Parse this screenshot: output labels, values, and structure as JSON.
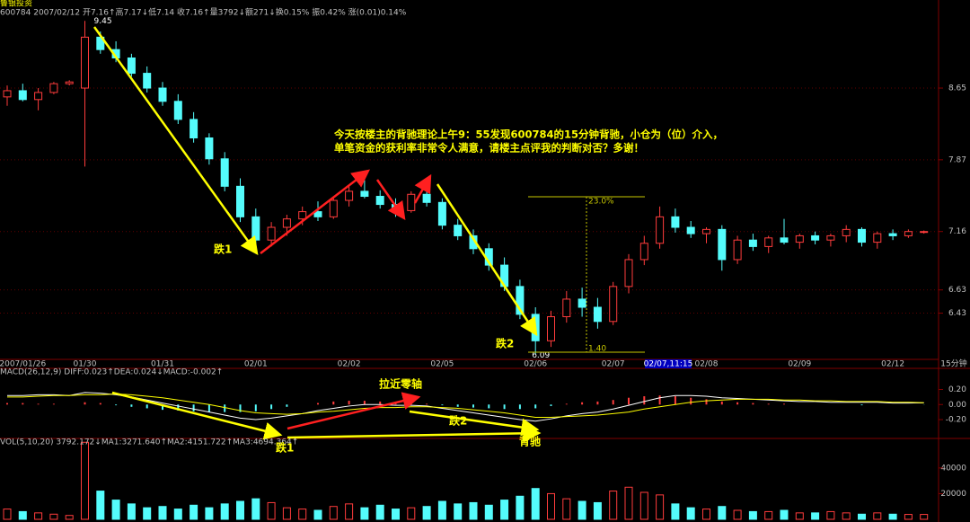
{
  "chart_data": [
    {
      "type": "candlestick",
      "title": "鲁银投资",
      "subtitle": "600784 2007/02/12 开7.16↑高7.17↓低7.14 收7.16↑量3792↓额271↓换0.15% 振0.42% 涨(0.01)0.14%",
      "categories": [
        null,
        "2007/01/26",
        null,
        null,
        null,
        "01/30",
        null,
        null,
        null,
        null,
        "01/31",
        null,
        null,
        null,
        null,
        null,
        "02/01",
        null,
        null,
        null,
        null,
        null,
        "02/02",
        null,
        null,
        null,
        null,
        null,
        "02/05",
        null,
        null,
        null,
        null,
        null,
        "02/06",
        null,
        null,
        null,
        null,
        "02/07",
        null,
        null,
        null,
        null,
        null,
        "02/08",
        null,
        null,
        null,
        null,
        null,
        "02/09",
        null,
        null,
        null,
        null,
        null,
        "02/12",
        null,
        null
      ],
      "cursor_label": "02/07,11:15",
      "period": "15分钟",
      "open": [
        8.55,
        8.62,
        8.52,
        8.6,
        8.7,
        8.65,
        9.25,
        9.1,
        9.0,
        8.82,
        8.65,
        8.5,
        8.3,
        8.1,
        7.88,
        7.6,
        7.3,
        7.08,
        7.2,
        7.28,
        7.35,
        7.3,
        7.46,
        7.55,
        7.5,
        7.42,
        7.36,
        7.52,
        7.44,
        7.22,
        7.12,
        7.0,
        6.85,
        6.66,
        6.42,
        6.2,
        6.4,
        6.55,
        6.48,
        6.36,
        6.66,
        6.9,
        7.05,
        7.3,
        7.2,
        7.14,
        7.18,
        6.9,
        7.08,
        7.02,
        7.1,
        7.06,
        7.12,
        7.08,
        7.12,
        7.18,
        7.06,
        7.14,
        7.12,
        7.16
      ],
      "high": [
        8.68,
        8.7,
        8.65,
        8.72,
        8.74,
        9.45,
        9.32,
        9.2,
        9.05,
        8.9,
        8.72,
        8.58,
        8.38,
        8.15,
        7.95,
        7.68,
        7.38,
        7.25,
        7.32,
        7.4,
        7.45,
        7.5,
        7.6,
        7.66,
        7.56,
        7.48,
        7.55,
        7.64,
        7.48,
        7.28,
        7.18,
        7.05,
        6.92,
        6.72,
        6.48,
        6.45,
        6.62,
        6.65,
        6.56,
        6.7,
        6.95,
        7.12,
        7.4,
        7.38,
        7.26,
        7.2,
        7.22,
        7.12,
        7.14,
        7.12,
        7.28,
        7.14,
        7.16,
        7.14,
        7.22,
        7.2,
        7.16,
        7.18,
        7.18,
        7.17
      ],
      "low": [
        8.45,
        8.5,
        8.4,
        8.58,
        8.68,
        7.8,
        9.05,
        8.95,
        8.78,
        8.6,
        8.45,
        8.25,
        8.05,
        7.82,
        7.55,
        7.25,
        7.0,
        7.02,
        7.12,
        7.22,
        7.26,
        7.28,
        7.4,
        7.48,
        7.38,
        7.3,
        7.34,
        7.4,
        7.18,
        7.08,
        6.95,
        6.8,
        6.62,
        6.38,
        6.09,
        6.15,
        6.35,
        6.4,
        6.3,
        6.33,
        6.6,
        6.85,
        7.0,
        7.15,
        7.1,
        7.05,
        6.8,
        6.86,
        6.98,
        6.96,
        7.04,
        7.0,
        7.04,
        7.02,
        7.06,
        7.02,
        7.0,
        7.08,
        7.1,
        7.14
      ],
      "close": [
        8.62,
        8.52,
        8.6,
        8.7,
        8.72,
        9.25,
        9.1,
        9.0,
        8.82,
        8.65,
        8.5,
        8.3,
        8.1,
        7.88,
        7.6,
        7.3,
        7.08,
        7.2,
        7.28,
        7.35,
        7.3,
        7.46,
        7.55,
        7.5,
        7.42,
        7.36,
        7.52,
        7.44,
        7.22,
        7.12,
        7.0,
        6.85,
        6.66,
        6.42,
        6.2,
        6.4,
        6.55,
        6.48,
        6.36,
        6.66,
        6.9,
        7.05,
        7.3,
        7.2,
        7.14,
        7.18,
        6.9,
        7.08,
        7.02,
        7.1,
        7.06,
        7.12,
        7.08,
        7.12,
        7.18,
        7.06,
        7.14,
        7.12,
        7.16,
        7.16
      ],
      "up_color": "#ff3c3c",
      "down_color": "#54fcfc",
      "log_scale": true,
      "ylim": [
        6.05,
        9.6
      ],
      "yticks": [
        6.43,
        6.63,
        7.16,
        7.87,
        8.65
      ],
      "grid": true
    },
    {
      "type": "macd",
      "title": "MACD(26,12,9) DIFF:0.023↑DEA:0.024↓MACD:-0.002↑",
      "histogram": [
        0.02,
        0.02,
        0.01,
        0.01,
        0.0,
        0.03,
        0.02,
        -0.01,
        -0.03,
        -0.05,
        -0.07,
        -0.08,
        -0.09,
        -0.1,
        -0.1,
        -0.1,
        -0.09,
        -0.06,
        -0.03,
        0.0,
        0.02,
        0.04,
        0.05,
        0.05,
        0.04,
        0.03,
        0.02,
        0.01,
        -0.01,
        -0.03,
        -0.04,
        -0.05,
        -0.06,
        -0.06,
        -0.05,
        -0.02,
        0.01,
        0.03,
        0.04,
        0.06,
        0.09,
        0.11,
        0.12,
        0.11,
        0.09,
        0.07,
        0.04,
        0.03,
        0.02,
        0.01,
        0.01,
        0.0,
        0.0,
        0.0,
        0.0,
        -0.01,
        0.0,
        0.0,
        0.0,
        -0.002
      ],
      "series": [
        {
          "color": "#ffffff",
          "values": [
            0.12,
            0.12,
            0.13,
            0.13,
            0.12,
            0.16,
            0.15,
            0.13,
            0.1,
            0.06,
            0.02,
            -0.02,
            -0.06,
            -0.1,
            -0.14,
            -0.18,
            -0.2,
            -0.18,
            -0.15,
            -0.12,
            -0.08,
            -0.05,
            -0.02,
            0.0,
            0.0,
            -0.01,
            -0.01,
            -0.02,
            -0.05,
            -0.08,
            -0.11,
            -0.14,
            -0.17,
            -0.2,
            -0.22,
            -0.19,
            -0.15,
            -0.12,
            -0.1,
            -0.06,
            -0.01,
            0.04,
            0.09,
            0.12,
            0.12,
            0.11,
            0.09,
            0.08,
            0.07,
            0.06,
            0.05,
            0.04,
            0.04,
            0.03,
            0.03,
            0.03,
            0.03,
            0.02,
            0.02,
            0.023
          ]
        },
        {
          "color": "#ffff00",
          "values": [
            0.1,
            0.1,
            0.11,
            0.12,
            0.12,
            0.13,
            0.13,
            0.14,
            0.13,
            0.11,
            0.09,
            0.06,
            0.03,
            0.0,
            -0.04,
            -0.08,
            -0.11,
            -0.12,
            -0.13,
            -0.12,
            -0.1,
            -0.09,
            -0.07,
            -0.05,
            -0.04,
            -0.04,
            -0.03,
            -0.03,
            -0.04,
            -0.05,
            -0.07,
            -0.09,
            -0.11,
            -0.14,
            -0.17,
            -0.17,
            -0.16,
            -0.15,
            -0.14,
            -0.12,
            -0.1,
            -0.06,
            -0.03,
            0.0,
            0.03,
            0.05,
            0.06,
            0.07,
            0.07,
            0.07,
            0.06,
            0.06,
            0.05,
            0.05,
            0.04,
            0.04,
            0.04,
            0.03,
            0.03,
            0.024
          ]
        }
      ],
      "up_color": "#ff3c3c",
      "down_color": "#54fcfc",
      "ylim": [
        -0.45,
        0.48
      ],
      "yticks": [
        {
          "value": 0.2,
          "label": "0.20"
        },
        {
          "value": 0,
          "label": "0.00"
        },
        {
          "value": -0.2,
          "label": "-0.20"
        }
      ]
    },
    {
      "type": "volume",
      "title": "VOL(5,10,20) 3792.172↓MA1:3271.640↑MA2:4151.722↑MA3:4694.364↑",
      "values": [
        8000,
        6000,
        5000,
        4000,
        3000,
        60000,
        22000,
        15000,
        12000,
        9000,
        10000,
        8000,
        11000,
        9000,
        12000,
        14000,
        16000,
        13000,
        9000,
        8000,
        7000,
        10000,
        12000,
        9000,
        11000,
        8000,
        9000,
        10000,
        14000,
        12000,
        13000,
        11000,
        15000,
        18000,
        24000,
        20000,
        16000,
        14000,
        13000,
        22000,
        25000,
        21000,
        19000,
        12000,
        9000,
        8000,
        10000,
        7000,
        6000,
        6000,
        7000,
        5000,
        5000,
        6000,
        5000,
        4000,
        5000,
        4000,
        3800,
        3792
      ],
      "ylim": [
        0,
        63000
      ],
      "yticks": [
        20000,
        40000
      ]
    }
  ],
  "annotations": {
    "note_line1": "今天按楼主的背驰理论上午9：55发现600784的15分钟背驰，小仓为（位）介入，",
    "note_line2": "单笔资金的获利率非常令人满意，请楼主点评我的判断对否？多谢！",
    "drop1": "跌1",
    "drop2": "跌2",
    "swing_pct": "23.0%",
    "swing_value": "1.40",
    "macd_pull": "拉近零轴",
    "macd_drop2": "跌2",
    "macd_drop1": "跌1",
    "divergence": "背驰"
  }
}
